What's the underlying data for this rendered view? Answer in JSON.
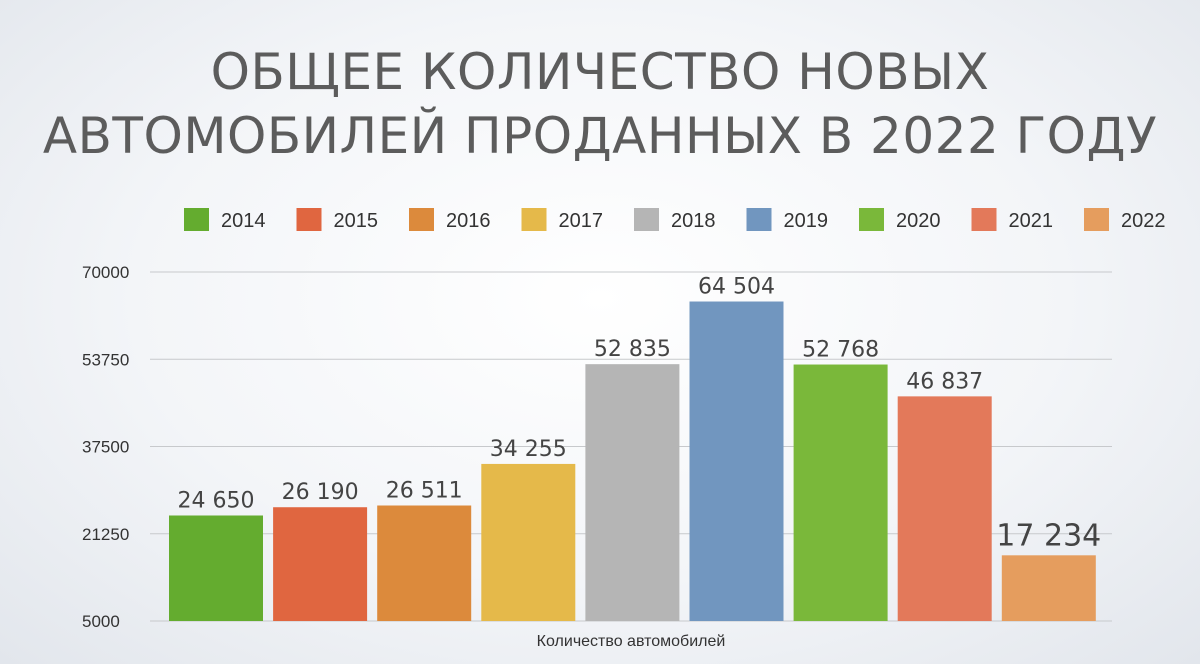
{
  "title_lines": [
    "ОБЩЕЕ КОЛИЧЕСТВО НОВЫХ",
    "АВТОМОБИЛЕЙ ПРОДАННЫХ В 2022 ГОДУ"
  ],
  "chart_data": {
    "type": "bar",
    "title": "ОБЩЕЕ КОЛИЧЕСТВО НОВЫХ АВТОМОБИЛЕЙ ПРОДАННЫХ В 2022 ГОДУ",
    "xlabel": "Количество автомобилей",
    "ylabel": "",
    "ylim": [
      5000,
      70000
    ],
    "yticks": [
      "70000",
      "53750",
      "37500",
      "21250",
      "5000"
    ],
    "legend_position": "top",
    "grid": true,
    "series": [
      {
        "name": "2014",
        "value": 24650,
        "label": "24 650",
        "color": "#64ac2f"
      },
      {
        "name": "2015",
        "value": 26190,
        "label": "26 190",
        "color": "#e06640"
      },
      {
        "name": "2016",
        "value": 26511,
        "label": "26 511",
        "color": "#dc8a3c"
      },
      {
        "name": "2017",
        "value": 34255,
        "label": "34 255",
        "color": "#e5b94a"
      },
      {
        "name": "2018",
        "value": 52835,
        "label": "52 835",
        "color": "#b5b5b5"
      },
      {
        "name": "2019",
        "value": 64504,
        "label": "64 504",
        "color": "#7196bf"
      },
      {
        "name": "2020",
        "value": 52768,
        "label": "52 768",
        "color": "#7ab83a"
      },
      {
        "name": "2021",
        "value": 46837,
        "label": "46 837",
        "color": "#e3795a"
      },
      {
        "name": "2022",
        "value": 17234,
        "label": "17 234",
        "color": "#e59d5e"
      }
    ]
  }
}
